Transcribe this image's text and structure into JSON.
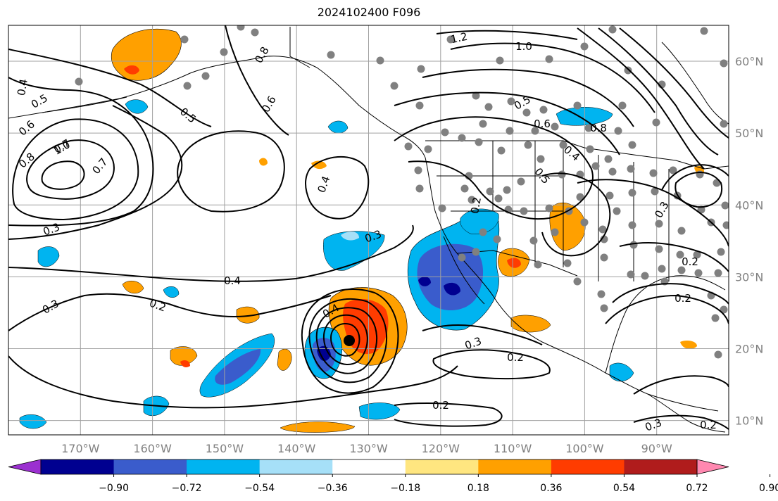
{
  "title": "2024102400 F096",
  "map": {
    "lon_range": [
      -180,
      -80
    ],
    "lat_range": [
      8,
      65
    ],
    "lon_ticks": [
      "170°W",
      "160°W",
      "150°W",
      "140°W",
      "130°W",
      "120°W",
      "110°W",
      "100°W",
      "90°W"
    ],
    "lat_ticks": [
      "60°N",
      "50°N",
      "40°N",
      "30°N",
      "20°N",
      "10°N"
    ],
    "grid": true,
    "station_color": "#808080",
    "contour_color": "#000000"
  },
  "colorbar": {
    "tick_labels": [
      "−0.90",
      "−0.72",
      "−0.54",
      "−0.36",
      "−0.18",
      "0.18",
      "0.36",
      "0.54",
      "0.72",
      "0.90"
    ],
    "colors": [
      "#9b30d0",
      "#000090",
      "#3a5ccc",
      "#00b4f0",
      "#a6e0f8",
      "#ffffff",
      "#ffe680",
      "#ffa000",
      "#ff3c00",
      "#b01c1c",
      "#ff88b0"
    ],
    "extend": "both"
  },
  "contour_labels": [
    "1.2",
    "1.0",
    "0.8",
    "0.4",
    "0.5",
    "0.6",
    "0.7",
    "1.0",
    "0.8",
    "0.7",
    "0.5",
    "0.6",
    "0.3",
    "0.4",
    "0.3",
    "0.4",
    "0.3",
    "0.2",
    "0.2",
    "0.3",
    "0.2",
    "0.2",
    "0.3",
    "0.2",
    "0.2",
    "0.5",
    "0.6",
    "0.8",
    "0.4",
    "0.5",
    "0.3",
    "0.2",
    "0.4"
  ]
}
